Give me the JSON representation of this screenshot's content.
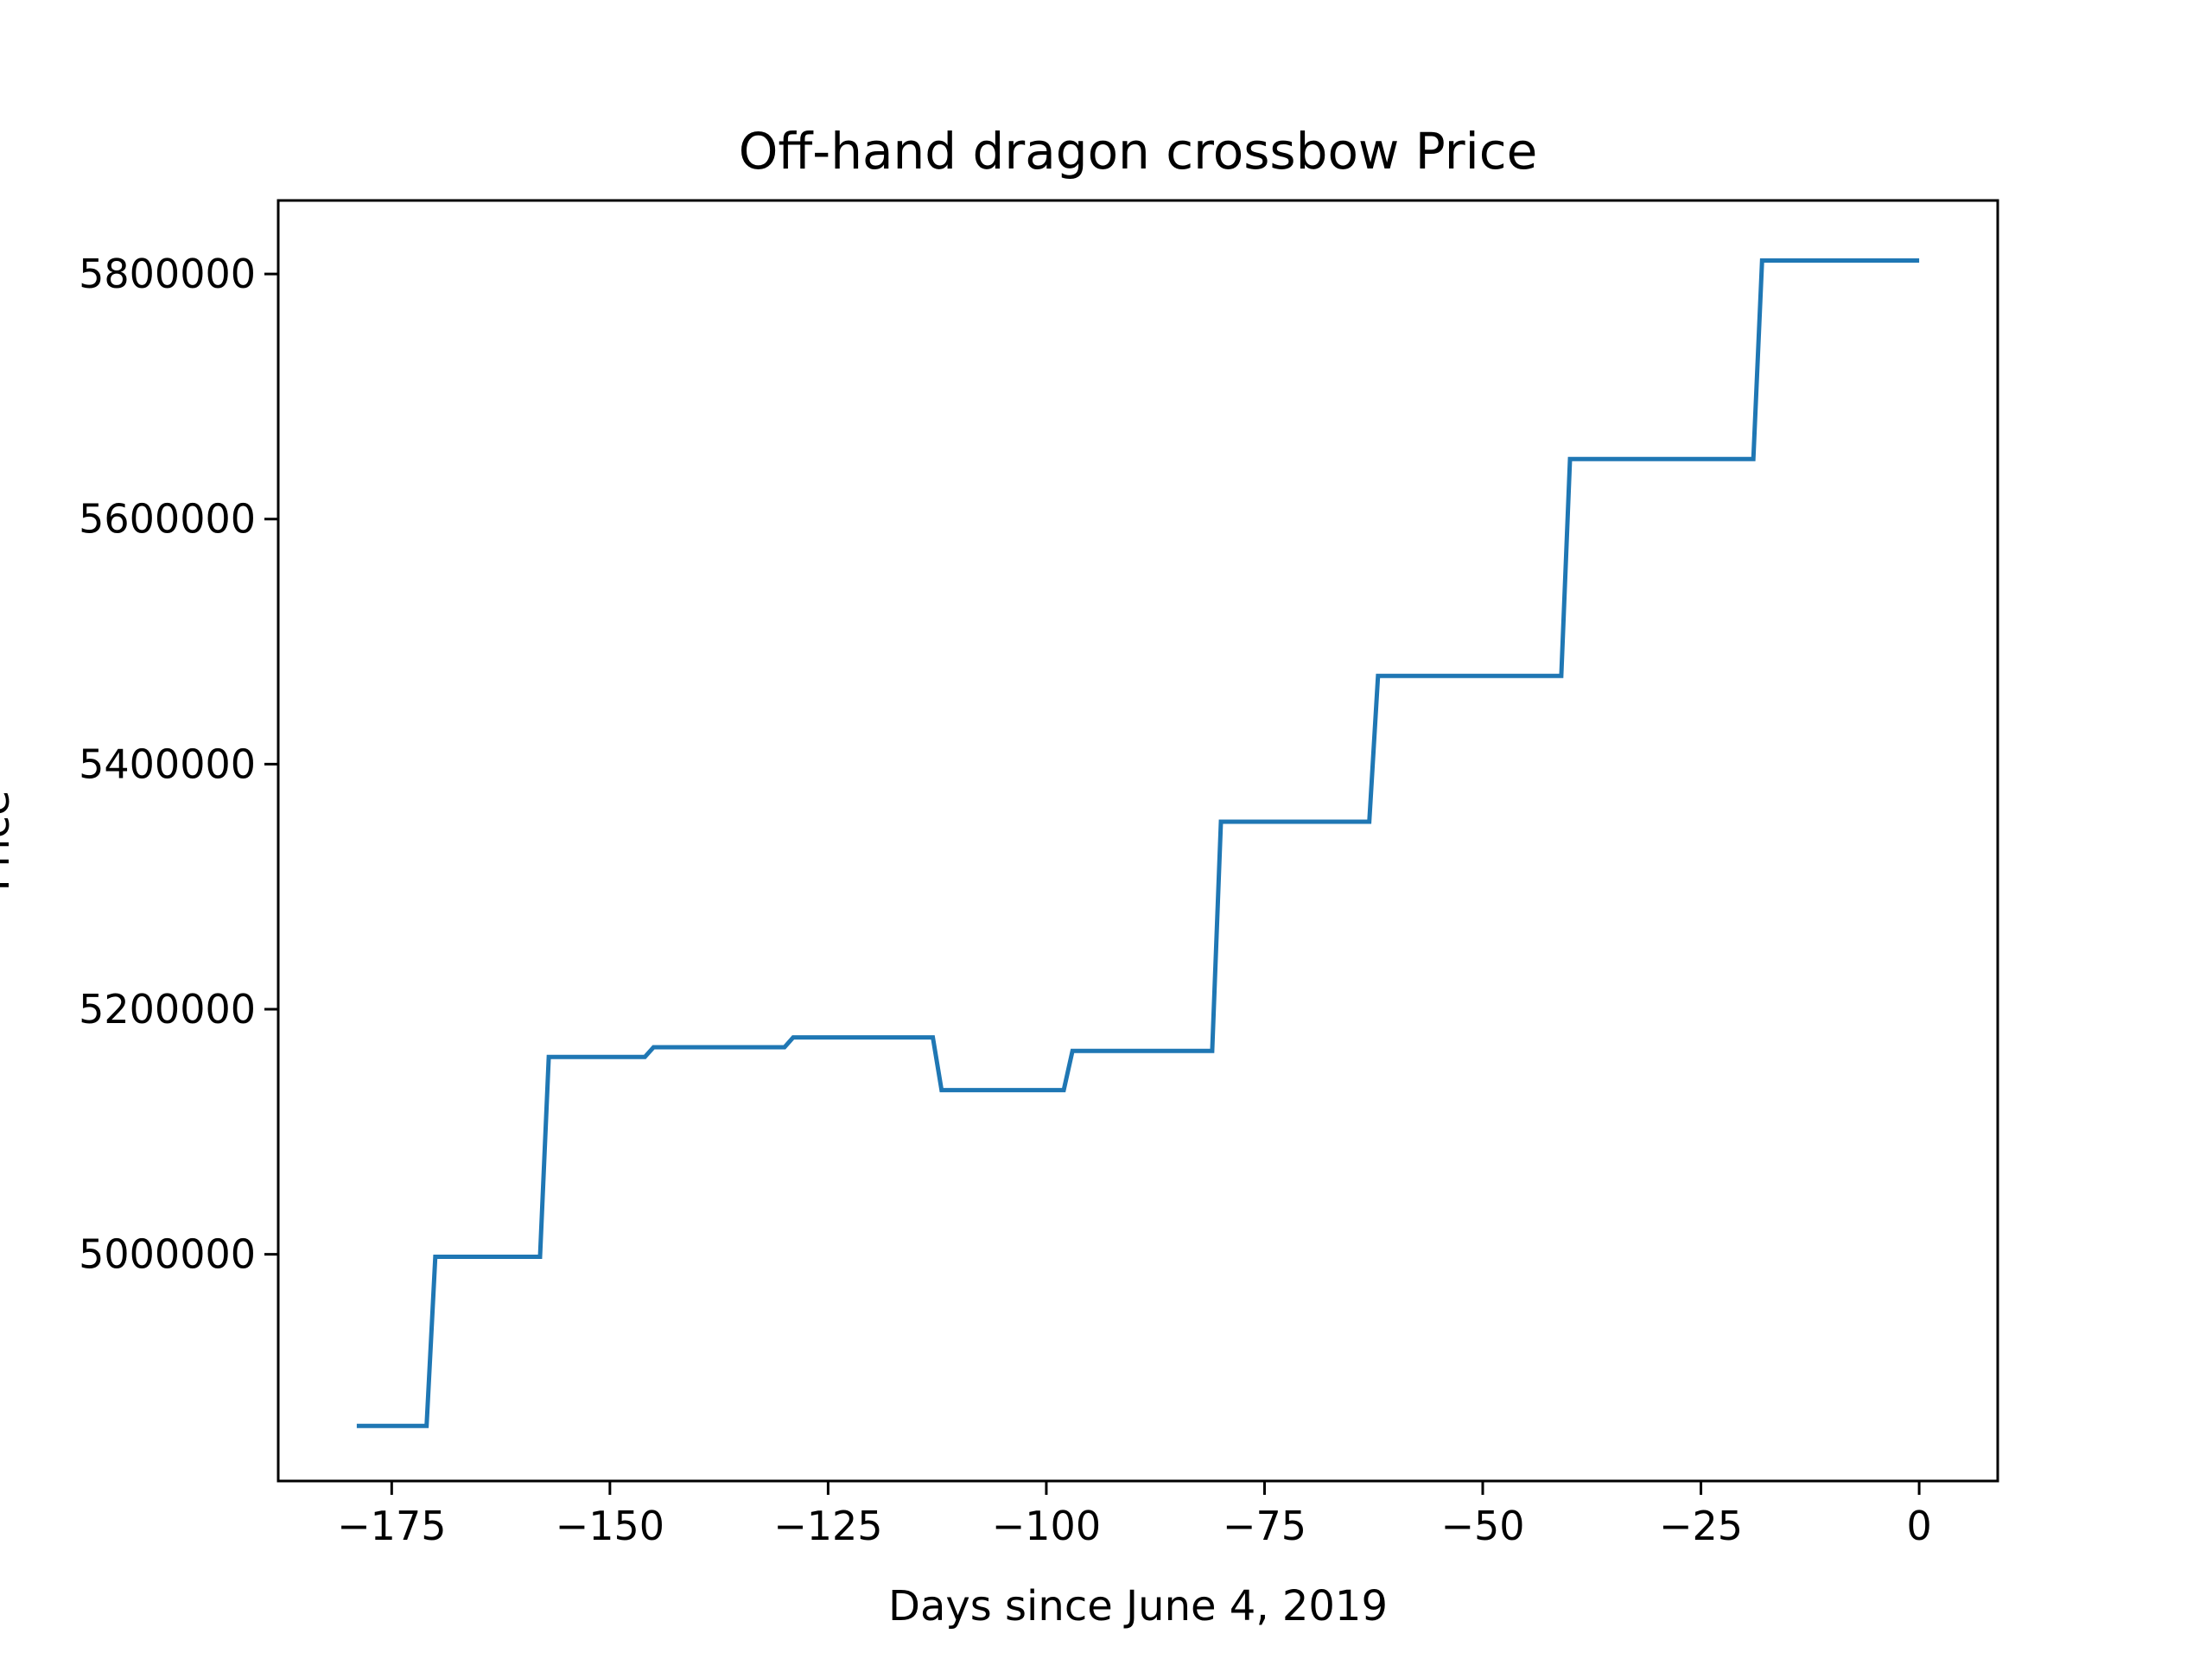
{
  "chart_data": {
    "type": "line",
    "title": "Off-hand dragon crossbow Price",
    "xlabel": "Days since June 4, 2019",
    "ylabel": "Price",
    "xlim": [
      -188,
      9
    ],
    "ylim": [
      4815000,
      5860000
    ],
    "x_ticks": [
      -175,
      -150,
      -125,
      -100,
      -75,
      -50,
      -25,
      0
    ],
    "y_ticks": [
      5000000,
      5200000,
      5400000,
      5600000,
      5800000
    ],
    "grid": false,
    "series": [
      {
        "color": "#1f77b4",
        "x": [
          -179,
          -171,
          -170,
          -158,
          -157,
          -146,
          -145,
          -130,
          -129,
          -113,
          -112,
          -98,
          -97,
          -81,
          -80,
          -63,
          -62,
          -41,
          -40,
          -19,
          -18,
          0
        ],
        "y": [
          4860000,
          4860000,
          4998000,
          4998000,
          5161000,
          5161000,
          5169000,
          5169000,
          5177000,
          5177000,
          5134000,
          5134000,
          5166000,
          5166000,
          5353000,
          5353000,
          5472000,
          5472000,
          5649000,
          5649000,
          5811000,
          5811000
        ]
      }
    ]
  }
}
